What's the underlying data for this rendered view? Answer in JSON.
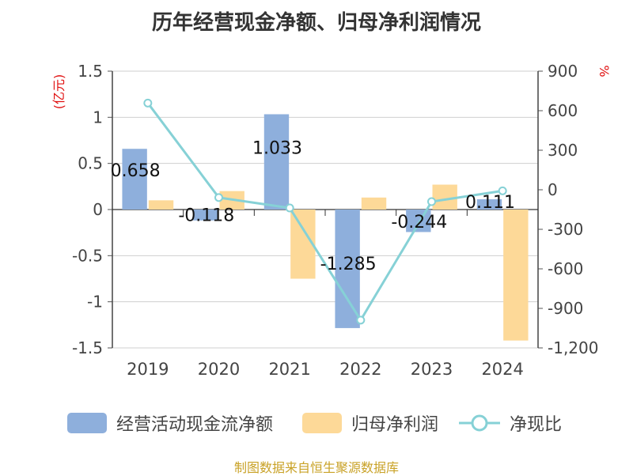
{
  "chart_data": {
    "type": "bar",
    "title": "历年经营现金净额、归母净利润情况",
    "categories": [
      "2019",
      "2020",
      "2021",
      "2022",
      "2023",
      "2024"
    ],
    "y_left": {
      "unit": "(亿元)",
      "ylim": [
        -1.5,
        1.5
      ],
      "ticks": [
        "1.5",
        "1",
        "0.5",
        "0",
        "-0.5",
        "-1",
        "-1.5"
      ]
    },
    "y_right": {
      "unit": "%",
      "ylim": [
        -1200,
        900
      ],
      "ticks": [
        "900",
        "600",
        "300",
        "0",
        "-300",
        "-600",
        "-900",
        "-1,200"
      ]
    },
    "series": [
      {
        "name": "经营活动现金流净额",
        "kind": "bar",
        "axis": "left",
        "color": "#8eafdc",
        "values": [
          0.658,
          -0.118,
          1.033,
          -1.285,
          -0.244,
          0.111
        ],
        "labels": [
          "0.658",
          "-0.118",
          "1.033",
          "-1.285",
          "-0.244",
          "0.111"
        ]
      },
      {
        "name": "归母净利润",
        "kind": "bar",
        "axis": "left",
        "color": "#fdd998",
        "values": [
          0.1,
          0.2,
          -0.75,
          0.13,
          0.27,
          -1.42
        ]
      },
      {
        "name": "净现比",
        "kind": "line",
        "axis": "right",
        "color": "#86d1d6",
        "values": [
          658,
          -59,
          -138,
          -989,
          -90,
          -8
        ]
      }
    ],
    "grid": true,
    "legend": "bottom"
  },
  "footer": {
    "source": "制图数据来自恒生聚源数据库"
  }
}
